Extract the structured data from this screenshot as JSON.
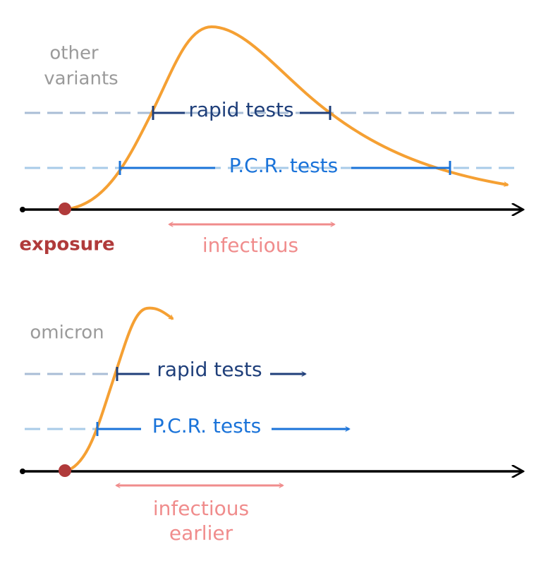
{
  "panels": [
    {
      "label": [
        "other",
        "variants"
      ],
      "rapid": "rapid tests",
      "pcr": "P.C.R. tests",
      "exposure": "exposure",
      "infectious": [
        "infectious"
      ]
    },
    {
      "label": [
        "omicron"
      ],
      "rapid": "rapid tests",
      "pcr": "P.C.R. tests",
      "infectious": [
        "infectious",
        "earlier"
      ]
    }
  ]
}
